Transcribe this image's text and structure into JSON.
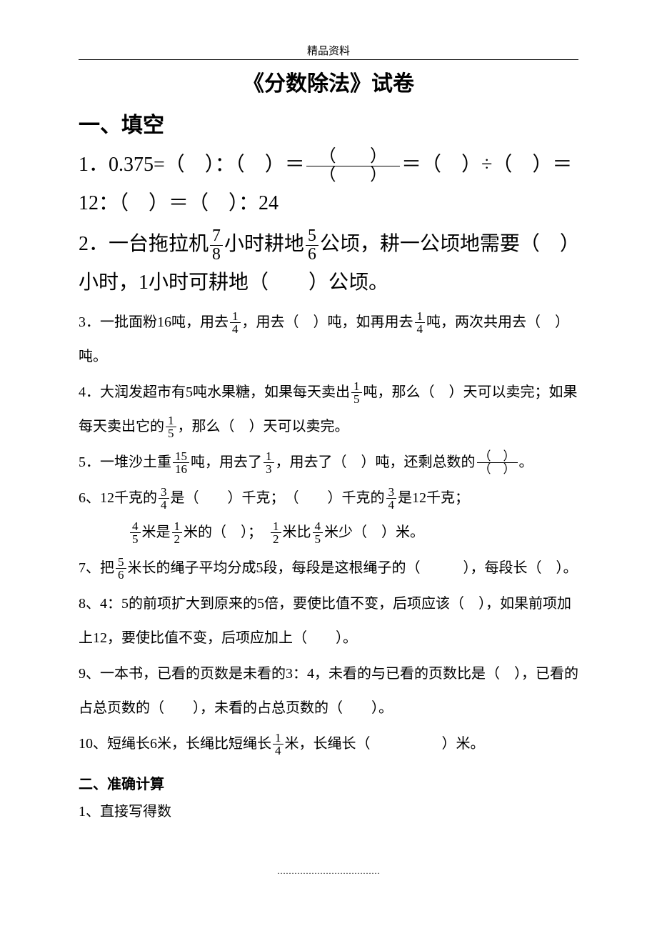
{
  "header": "精品资料",
  "title": "《分数除法》试卷",
  "section1_heading": "一、填空",
  "q1": {
    "pre": "1．0.375=（　）：（　）＝",
    "frac_num": "（　　）",
    "frac_den": "（　　）",
    "mid": "＝（　）÷（　）＝12：（　）＝（　）：24"
  },
  "q2": {
    "a": "2．一台拖拉机",
    "f1n": "7",
    "f1d": "8",
    "b": "小时耕地",
    "f2n": "5",
    "f2d": "6",
    "c": "公顷，耕一公顷地需要（　）小时，1小时可耕地（　　）公顷。"
  },
  "q3": {
    "a": "3．一批面粉16吨，用去",
    "f1n": "1",
    "f1d": "4",
    "b": "，用去（　）吨，如再用去",
    "f2n": "1",
    "f2d": "4",
    "c": "吨，两次共用去（　）吨。"
  },
  "q4": {
    "a": "4．大润发超市有5吨水果糖，如果每天卖出",
    "f1n": "1",
    "f1d": "5",
    "b": "吨，那么（　）天可以卖完；如果每天卖出它的",
    "f2n": "1",
    "f2d": "5",
    "c": "，那么（　）天可以卖完。"
  },
  "q5": {
    "a": "5．一堆沙土重",
    "f1n": "15",
    "f1d": "16",
    "b": "吨，用去了",
    "f2n": "1",
    "f2d": "3",
    "c": "，用去了（　）吨，还剩总数的",
    "f3n": "（　）",
    "f3d": "（　）",
    "d": "。"
  },
  "q6": {
    "a": "6、12千克的",
    "f1n": "3",
    "f1d": "4",
    "b": "是（　　）千克；　（　　）千克的",
    "f2n": "3",
    "f2d": "4",
    "c": "是12千克；",
    "line2a": "",
    "f3n": "4",
    "f3d": "5",
    "d": "米是",
    "f4n": "1",
    "f4d": "2",
    "e": "米的（　）；　",
    "f5n": "1",
    "f5d": "2",
    "f": "米比",
    "f6n": "4",
    "f6d": "5",
    "g": "米少（　）米。"
  },
  "q7": {
    "a": "7、把",
    "f1n": "5",
    "f1d": "6",
    "b": "米长的绳子平均分成5段，每段是这根绳子的（　　　），每段长（　）。"
  },
  "q8": "8、4：5的前项扩大到原来的5倍，要使比值不变，后项应该（　），如果前项加上12，要使比值不变，后项应加上（　　）。",
  "q9": "9、一本书，已看的页数是未看的3：4，未看的与已看的页数比是（　），已看的占总页数的（　　），未看的占总页数的（　　）。",
  "q10": {
    "a": "10、短绳长6米，长绳比短绳长",
    "f1n": "1",
    "f1d": "4",
    "b": "米，长绳长（　　　　　）米。"
  },
  "section2_heading": "二、准确计算",
  "q2_1": "1、直接写得数",
  "footer": "………………………………"
}
